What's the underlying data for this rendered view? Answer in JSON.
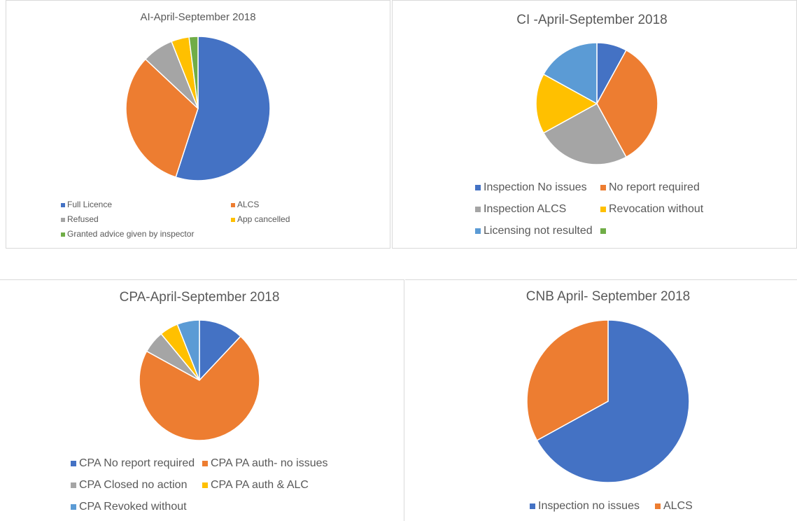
{
  "chart_data": [
    {
      "type": "pie",
      "title": "AI-April-September 2018",
      "categories": [
        "Full Licence",
        "ALCS",
        "Refused",
        "App cancelled",
        "Granted advice given by inspector"
      ],
      "values": [
        55,
        32,
        7,
        4,
        2
      ],
      "colors": [
        "#4472c4",
        "#ed7d31",
        "#a5a5a5",
        "#ffc000",
        "#70ad47"
      ]
    },
    {
      "type": "pie",
      "title": "CI -April-September 2018",
      "categories": [
        "Inspection No issues",
        "No report required",
        "Inspection ALCS",
        "Revocation without",
        "Licensing not resulted",
        null
      ],
      "values": [
        8,
        34,
        25,
        16,
        17,
        0
      ],
      "colors": [
        "#4472c4",
        "#ed7d31",
        "#a5a5a5",
        "#ffc000",
        "#5b9bd5",
        "#70ad47"
      ]
    },
    {
      "type": "pie",
      "title": "CPA-April-September 2018",
      "categories": [
        "CPA No report required",
        "CPA PA auth- no issues",
        "CPA Closed no action",
        "CPA PA auth & ALC",
        "CPA Revoked without"
      ],
      "values": [
        12,
        71,
        6,
        5,
        6
      ],
      "colors": [
        "#4472c4",
        "#ed7d31",
        "#a5a5a5",
        "#ffc000",
        "#5b9bd5"
      ]
    },
    {
      "type": "pie",
      "title": "CNB April- September 2018",
      "categories": [
        "Inspection no issues",
        "ALCS"
      ],
      "values": [
        67,
        33
      ],
      "colors": [
        "#4472c4",
        "#ed7d31"
      ]
    }
  ]
}
